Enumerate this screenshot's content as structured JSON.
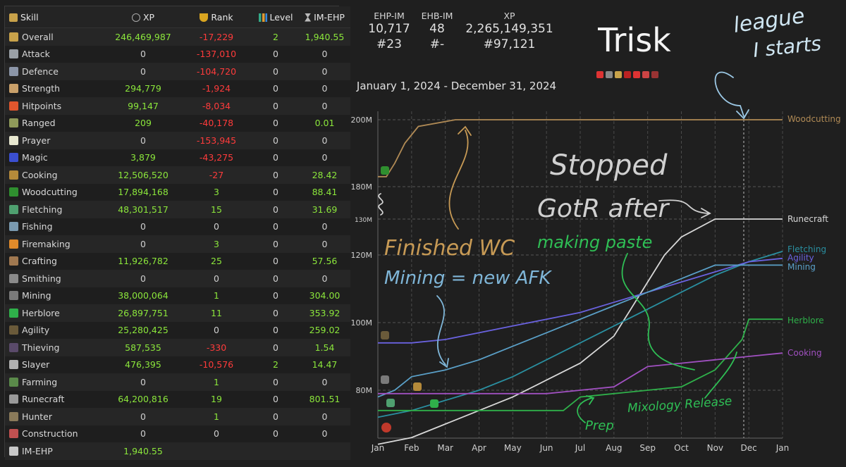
{
  "table": {
    "headers": {
      "skill": "Skill",
      "xp": "XP",
      "rank": "Rank",
      "level": "Level",
      "ehp": "IM-EHP"
    },
    "rows": [
      {
        "skill": "Overall",
        "xp": "246,469,987",
        "rank": "-17,229",
        "level": "2",
        "ehp": "1,940.55",
        "icon_color": "#c8a24a",
        "icon": "overall-icon"
      },
      {
        "skill": "Attack",
        "xp": "0",
        "rank": "-137,010",
        "level": "0",
        "ehp": "0",
        "icon_color": "#9aa0a6",
        "icon": "attack-icon"
      },
      {
        "skill": "Defence",
        "xp": "0",
        "rank": "-104,720",
        "level": "0",
        "ehp": "0",
        "icon_color": "#8c96a8",
        "icon": "defence-icon"
      },
      {
        "skill": "Strength",
        "xp": "294,779",
        "rank": "-1,924",
        "level": "0",
        "ehp": "0",
        "icon_color": "#c9a06a",
        "icon": "strength-icon"
      },
      {
        "skill": "Hitpoints",
        "xp": "99,147",
        "rank": "-8,034",
        "level": "0",
        "ehp": "0",
        "icon_color": "#e0562d",
        "icon": "hitpoints-icon"
      },
      {
        "skill": "Ranged",
        "xp": "209",
        "rank": "-40,178",
        "level": "0",
        "ehp": "0.01",
        "icon_color": "#8f9a5a",
        "icon": "ranged-icon"
      },
      {
        "skill": "Prayer",
        "xp": "0",
        "rank": "-153,945",
        "level": "0",
        "ehp": "0",
        "icon_color": "#e8e8d0",
        "icon": "prayer-icon"
      },
      {
        "skill": "Magic",
        "xp": "3,879",
        "rank": "-43,275",
        "level": "0",
        "ehp": "0",
        "icon_color": "#3b4fd0",
        "icon": "magic-icon"
      },
      {
        "skill": "Cooking",
        "xp": "12,506,520",
        "rank": "-27",
        "level": "0",
        "ehp": "28.42",
        "icon_color": "#b58a3a",
        "icon": "cooking-icon"
      },
      {
        "skill": "Woodcutting",
        "xp": "17,894,168",
        "rank": "3",
        "level": "0",
        "ehp": "88.41",
        "icon_color": "#2f8f2f",
        "icon": "woodcutting-icon"
      },
      {
        "skill": "Fletching",
        "xp": "48,301,517",
        "rank": "15",
        "level": "0",
        "ehp": "31.69",
        "icon_color": "#4fa070",
        "icon": "fletching-icon"
      },
      {
        "skill": "Fishing",
        "xp": "0",
        "rank": "0",
        "level": "0",
        "ehp": "0",
        "icon_color": "#7a9ab0",
        "icon": "fishing-icon"
      },
      {
        "skill": "Firemaking",
        "xp": "0",
        "rank": "3",
        "level": "0",
        "ehp": "0",
        "icon_color": "#e08a2a",
        "icon": "firemaking-icon"
      },
      {
        "skill": "Crafting",
        "xp": "11,926,782",
        "rank": "25",
        "level": "0",
        "ehp": "57.56",
        "icon_color": "#a07850",
        "icon": "crafting-icon"
      },
      {
        "skill": "Smithing",
        "xp": "0",
        "rank": "0",
        "level": "0",
        "ehp": "0",
        "icon_color": "#8a8a8a",
        "icon": "smithing-icon"
      },
      {
        "skill": "Mining",
        "xp": "38,000,064",
        "rank": "1",
        "level": "0",
        "ehp": "304.00",
        "icon_color": "#7a7a7a",
        "icon": "mining-icon"
      },
      {
        "skill": "Herblore",
        "xp": "26,897,751",
        "rank": "11",
        "level": "0",
        "ehp": "353.92",
        "icon_color": "#2fb04a",
        "icon": "herblore-icon"
      },
      {
        "skill": "Agility",
        "xp": "25,280,425",
        "rank": "0",
        "level": "0",
        "ehp": "259.02",
        "icon_color": "#6a5a3a",
        "icon": "agility-icon"
      },
      {
        "skill": "Thieving",
        "xp": "587,535",
        "rank": "-330",
        "level": "0",
        "ehp": "1.54",
        "icon_color": "#5a4a6a",
        "icon": "thieving-icon"
      },
      {
        "skill": "Slayer",
        "xp": "476,395",
        "rank": "-10,576",
        "level": "2",
        "ehp": "14.47",
        "icon_color": "#b0b0b0",
        "icon": "slayer-icon"
      },
      {
        "skill": "Farming",
        "xp": "0",
        "rank": "1",
        "level": "0",
        "ehp": "0",
        "icon_color": "#5a8a4a",
        "icon": "farming-icon"
      },
      {
        "skill": "Runecraft",
        "xp": "64,200,816",
        "rank": "19",
        "level": "0",
        "ehp": "801.51",
        "icon_color": "#9a9a9a",
        "icon": "runecraft-icon"
      },
      {
        "skill": "Hunter",
        "xp": "0",
        "rank": "1",
        "level": "0",
        "ehp": "0",
        "icon_color": "#8a7a5a",
        "icon": "hunter-icon"
      },
      {
        "skill": "Construction",
        "xp": "0",
        "rank": "0",
        "level": "0",
        "ehp": "0",
        "icon_color": "#c05050",
        "icon": "construction-icon"
      },
      {
        "skill": "IM-EHP",
        "xp": "1,940.55",
        "rank": "",
        "level": "",
        "ehp": "",
        "icon_color": "#c8c8c8",
        "icon": "hourglass-icon"
      }
    ]
  },
  "summary": {
    "ehp_label": "EHP-IM",
    "ehp_value": "10,717",
    "ehp_rank": "#23",
    "ehb_label": "EHB-IM",
    "ehb_value": "48",
    "ehb_rank": "#-",
    "xp_label": "XP",
    "xp_value": "2,265,149,351",
    "xp_rank": "#97,121"
  },
  "player": {
    "name": "Trisk",
    "date_range": "January 1, 2024 - December 31, 2024"
  },
  "badges": [
    "#d33",
    "#888",
    "#c8a24a",
    "#b22",
    "#d33",
    "#c44",
    "#933"
  ],
  "annotations": {
    "league": "league",
    "league2": "I starts",
    "stopped1": "Stopped",
    "stopped2": "GotR after",
    "stopped3": "making paste",
    "finished_wc": "Finished WC",
    "mining": "Mining = new AFK",
    "mixology": "Mixology Release",
    "prep": "Prep",
    "colors": {
      "white": "#cfe6f2",
      "tan": "#c79a55",
      "blue": "#7fb6d8",
      "green": "#2fbf55",
      "grey": "#d0d0d0"
    }
  },
  "chart_data": {
    "type": "line",
    "x_ticks": [
      "Jan",
      "Feb",
      "Mar",
      "Apr",
      "May",
      "Jun",
      "Jul",
      "Aug",
      "Sep",
      "Oct",
      "Nov",
      "Dec",
      "Jan"
    ],
    "y_ticks": [
      "80M",
      "100M",
      "120M",
      "130M",
      "180M",
      "200M"
    ],
    "series": [
      {
        "name": "Woodcutting",
        "color": "#b08a55",
        "points": [
          [
            0,
            183
          ],
          [
            0.25,
            183
          ],
          [
            0.5,
            187
          ],
          [
            0.8,
            193
          ],
          [
            1.2,
            198
          ],
          [
            2.3,
            200
          ],
          [
            12,
            200
          ]
        ]
      },
      {
        "name": "Runecraft",
        "color": "#d8d8d8",
        "points": [
          [
            0,
            64
          ],
          [
            1,
            66
          ],
          [
            2,
            70
          ],
          [
            3,
            74
          ],
          [
            4,
            78
          ],
          [
            5,
            83
          ],
          [
            6,
            88
          ],
          [
            7,
            96
          ],
          [
            7.5,
            104
          ],
          [
            8,
            112
          ],
          [
            8.5,
            120
          ],
          [
            9,
            125
          ],
          [
            10,
            130
          ],
          [
            12,
            130
          ]
        ]
      },
      {
        "name": "Fletching",
        "color": "#2a8fa0",
        "points": [
          [
            0,
            72
          ],
          [
            1,
            74
          ],
          [
            2,
            77
          ],
          [
            3,
            80
          ],
          [
            4,
            84
          ],
          [
            5,
            89
          ],
          [
            6,
            94
          ],
          [
            7,
            99
          ],
          [
            8,
            104
          ],
          [
            9,
            109
          ],
          [
            10,
            114
          ],
          [
            11,
            118
          ],
          [
            12,
            121
          ]
        ]
      },
      {
        "name": "Agility",
        "color": "#6a62e0",
        "points": [
          [
            0,
            94
          ],
          [
            1,
            94
          ],
          [
            2,
            95
          ],
          [
            3,
            97
          ],
          [
            4,
            99
          ],
          [
            5,
            101
          ],
          [
            6,
            103
          ],
          [
            7,
            106
          ],
          [
            8,
            109
          ],
          [
            9,
            112
          ],
          [
            10,
            115
          ],
          [
            11,
            118
          ],
          [
            12,
            119
          ]
        ]
      },
      {
        "name": "Mining",
        "color": "#5aa0c8",
        "points": [
          [
            0,
            78
          ],
          [
            0.5,
            80
          ],
          [
            1,
            84
          ],
          [
            2,
            86
          ],
          [
            3,
            89
          ],
          [
            4,
            93
          ],
          [
            5,
            97
          ],
          [
            6,
            101
          ],
          [
            7,
            105
          ],
          [
            8,
            109
          ],
          [
            9,
            113
          ],
          [
            10,
            117
          ],
          [
            12,
            117
          ]
        ]
      },
      {
        "name": "Herblore",
        "color": "#2fb04a",
        "points": [
          [
            0,
            74
          ],
          [
            1,
            74
          ],
          [
            2,
            74
          ],
          [
            3,
            74
          ],
          [
            4,
            74
          ],
          [
            5,
            74
          ],
          [
            5.5,
            74
          ],
          [
            6,
            78
          ],
          [
            7,
            79
          ],
          [
            8,
            80
          ],
          [
            9,
            81
          ],
          [
            10,
            86
          ],
          [
            10.8,
            95
          ],
          [
            11,
            101
          ],
          [
            12,
            101
          ]
        ]
      },
      {
        "name": "Cooking",
        "color": "#a050c0",
        "points": [
          [
            0,
            79
          ],
          [
            1,
            79
          ],
          [
            2,
            79
          ],
          [
            3,
            79
          ],
          [
            4,
            79
          ],
          [
            5,
            79
          ],
          [
            6,
            80
          ],
          [
            7,
            81
          ],
          [
            7.5,
            84
          ],
          [
            8,
            87
          ],
          [
            9,
            88
          ],
          [
            10,
            89
          ],
          [
            11,
            90
          ],
          [
            12,
            91
          ]
        ]
      }
    ]
  }
}
